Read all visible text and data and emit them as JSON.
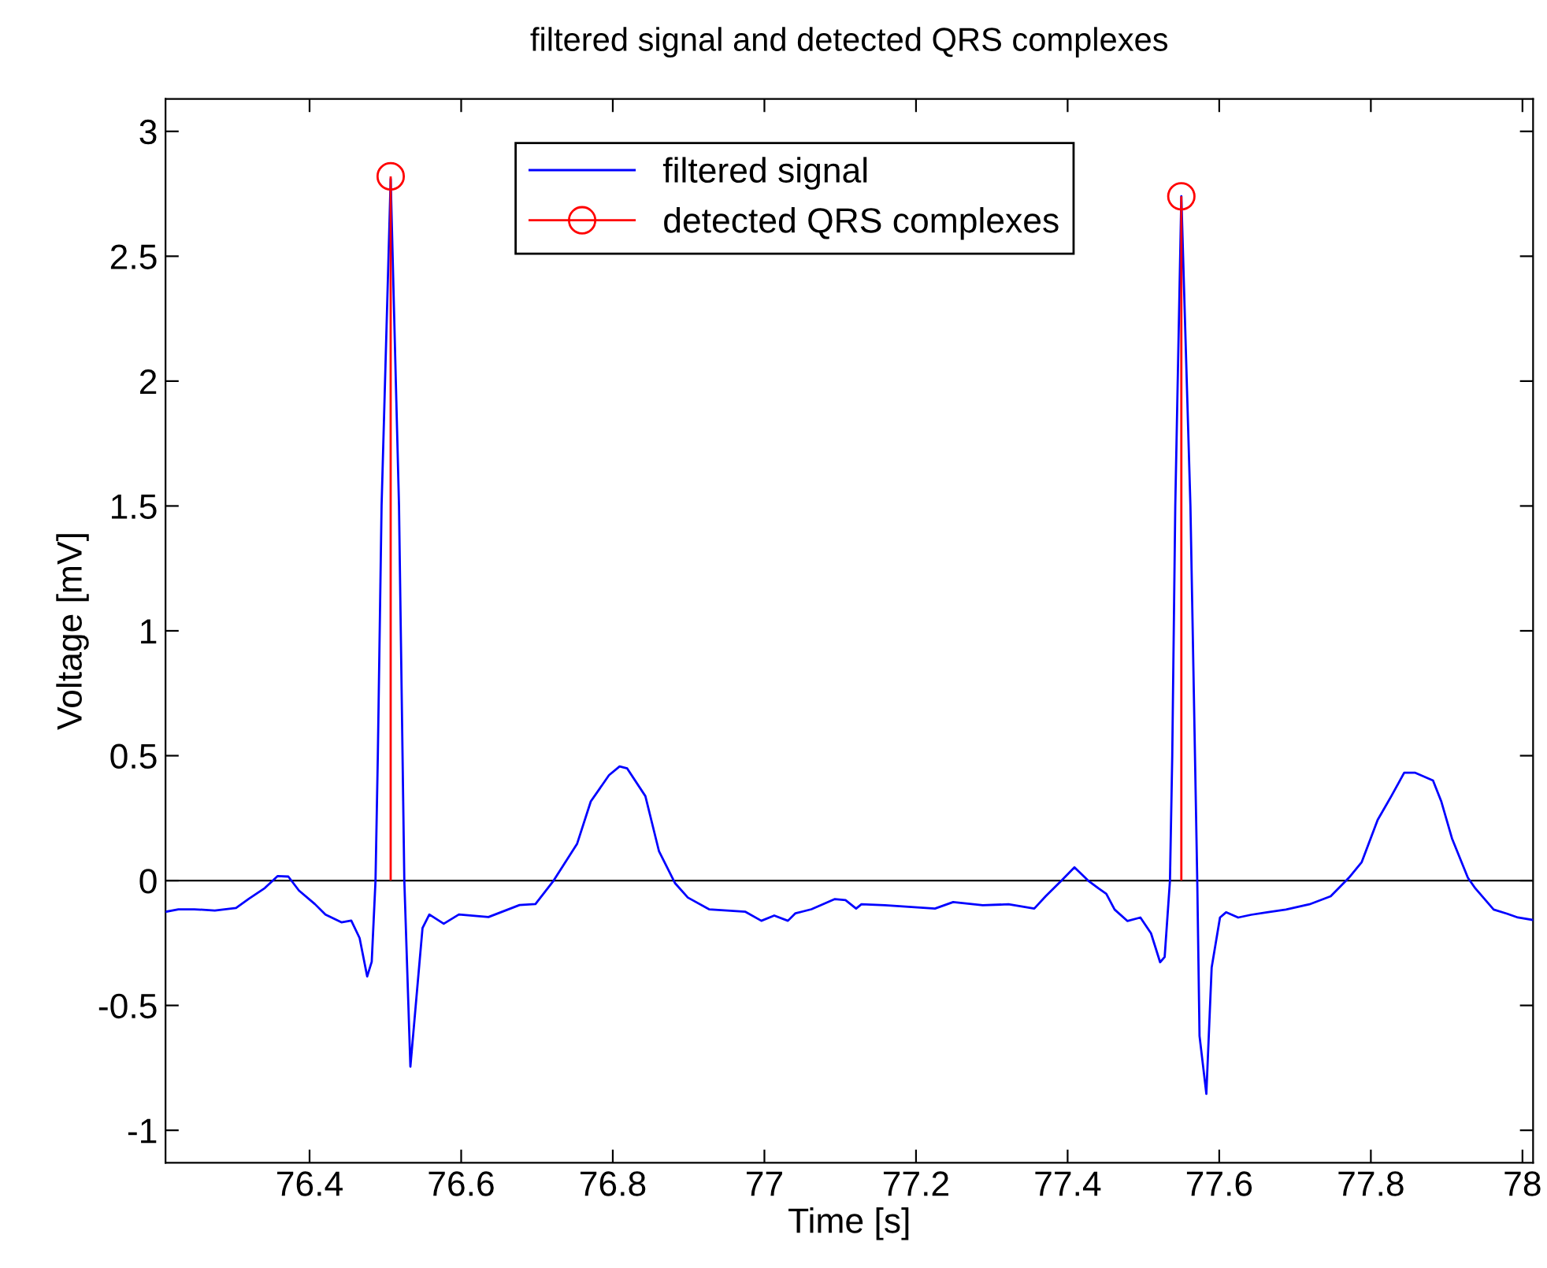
{
  "chart_data": {
    "type": "line",
    "title": "filtered signal and detected QRS complexes",
    "xlabel": "Time [s]",
    "ylabel": "Voltage [mV]",
    "xlim": [
      76.21,
      78.014
    ],
    "ylim": [
      -1.13,
      3.13
    ],
    "xticks": [
      76.4,
      76.6,
      76.8,
      77,
      77.2,
      77.4,
      77.6,
      77.8,
      78
    ],
    "yticks": [
      -1,
      -0.5,
      0,
      0.5,
      1,
      1.5,
      2,
      2.5,
      3
    ],
    "grid": false,
    "legend": "top",
    "ref_lines": [
      {
        "axis": "y",
        "value": 0,
        "color": "#000000"
      }
    ],
    "series": [
      {
        "name": "filtered signal",
        "color": "#0000ff",
        "line_style": "solid",
        "marker": "none",
        "x": [
          76.21,
          76.227,
          76.248,
          76.275,
          76.303,
          76.32,
          76.341,
          76.358,
          76.372,
          76.386,
          76.407,
          76.421,
          76.442,
          76.455,
          76.466,
          76.476,
          76.482,
          76.487,
          76.49,
          76.495,
          76.507,
          76.518,
          76.525,
          76.533,
          76.549,
          76.558,
          76.577,
          76.597,
          76.636,
          76.677,
          76.698,
          76.722,
          76.753,
          76.771,
          76.795,
          76.809,
          76.819,
          76.843,
          76.861,
          76.882,
          76.899,
          76.927,
          76.975,
          76.996,
          77.013,
          77.031,
          77.041,
          77.062,
          77.093,
          77.107,
          77.121,
          77.128,
          77.159,
          77.225,
          77.249,
          77.288,
          77.322,
          77.356,
          77.371,
          77.392,
          77.409,
          77.427,
          77.441,
          77.451,
          77.462,
          77.479,
          77.496,
          77.51,
          77.522,
          77.528,
          77.535,
          77.538,
          77.542,
          77.55,
          77.562,
          77.571,
          77.574,
          77.583,
          77.59,
          77.601,
          77.609,
          77.625,
          77.642,
          77.663,
          77.688,
          77.719,
          77.747,
          77.771,
          77.788,
          77.809,
          77.827,
          77.844,
          77.858,
          77.882,
          77.893,
          77.907,
          77.928,
          77.938,
          77.962,
          77.98,
          77.994,
          78.014
        ],
        "values": [
          -0.125,
          -0.115,
          -0.115,
          -0.12,
          -0.11,
          -0.073,
          -0.03,
          0.018,
          0.016,
          -0.04,
          -0.094,
          -0.136,
          -0.167,
          -0.16,
          -0.23,
          -0.384,
          -0.325,
          0,
          0.49,
          1.5,
          2.81,
          1.5,
          0,
          -0.745,
          -0.19,
          -0.136,
          -0.173,
          -0.136,
          -0.146,
          -0.098,
          -0.094,
          0,
          0.148,
          0.317,
          0.422,
          0.457,
          0.449,
          0.338,
          0.117,
          -0.01,
          -0.068,
          -0.115,
          -0.125,
          -0.161,
          -0.14,
          -0.161,
          -0.131,
          -0.115,
          -0.074,
          -0.078,
          -0.112,
          -0.095,
          -0.099,
          -0.112,
          -0.086,
          -0.099,
          -0.095,
          -0.112,
          -0.063,
          0,
          0.053,
          0,
          -0.032,
          -0.053,
          -0.116,
          -0.162,
          -0.148,
          -0.211,
          -0.327,
          -0.306,
          0,
          0.496,
          1.5,
          2.74,
          1.5,
          0,
          -0.622,
          -0.854,
          -0.348,
          -0.148,
          -0.127,
          -0.148,
          -0.137,
          -0.127,
          -0.116,
          -0.095,
          -0.063,
          0.011,
          0.074,
          0.243,
          0.338,
          0.432,
          0.432,
          0.401,
          0.316,
          0.169,
          0.011,
          -0.032,
          -0.116,
          -0.133,
          -0.148,
          -0.158
        ]
      },
      {
        "name": "detected QRS complexes",
        "type": "lollipop",
        "color": "#ff0000",
        "marker": "circle",
        "x": [
          76.507,
          77.55
        ],
        "values": [
          2.82,
          2.74
        ]
      }
    ]
  }
}
